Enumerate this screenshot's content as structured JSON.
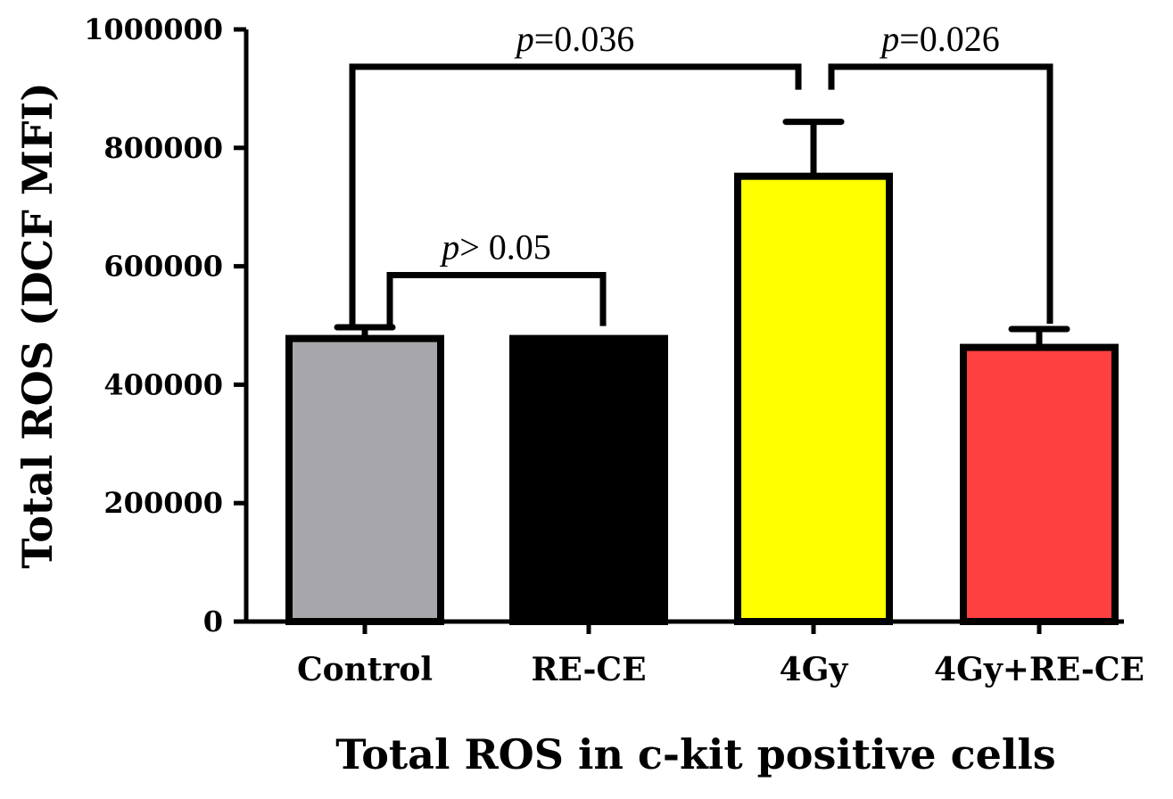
{
  "chart_data": {
    "type": "bar",
    "categories": [
      "Control",
      "RE-CE",
      "4Gy",
      "4Gy+RE-CE"
    ],
    "values": [
      478000,
      478000,
      752000,
      463000
    ],
    "errors": [
      19000,
      0,
      92000,
      31000
    ],
    "colors": [
      "#a7a6aa",
      "#000000",
      "#ffff00",
      "#ff4040"
    ],
    "ylabel": "Total ROS (DCF MFI)",
    "xlabel": "Total ROS in c-kit positive cells",
    "ylim": [
      0,
      1000000
    ],
    "yticks": [
      0,
      200000,
      400000,
      600000,
      800000,
      1000000
    ],
    "ytick_labels": [
      "0",
      "200000",
      "400000",
      "600000",
      "800000",
      "1000000"
    ],
    "annotations": [
      {
        "from": 0,
        "to": 1,
        "level": 585000,
        "p_symbol": "p",
        "p_text": "> 0.05"
      },
      {
        "from": 0,
        "to": 2,
        "level": 937000,
        "p_symbol": "p",
        "p_text": "=0.036"
      },
      {
        "from": 2,
        "to": 3,
        "level": 937000,
        "p_symbol": "p",
        "p_text": "=0.026"
      }
    ]
  }
}
